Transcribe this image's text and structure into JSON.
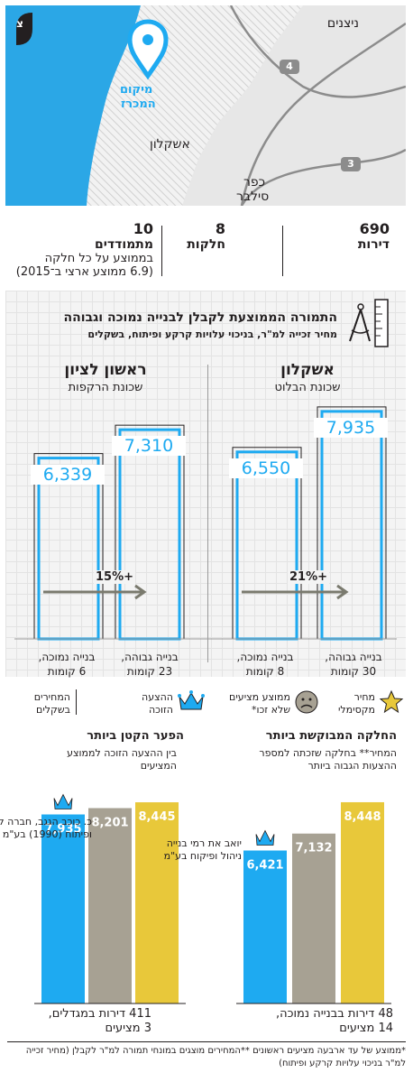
{
  "map": {
    "labels": {
      "nitzanim": "ניצנים",
      "location_line1": "מיקום",
      "location_line2": "המכרז",
      "ashkelon": "אשקלון",
      "kfar_line1": "כפר",
      "kfar_line2": "סילבר"
    },
    "roads": {
      "r4": "4",
      "r3": "3"
    },
    "icons": {
      "pin": "location-pin-icon",
      "north": "north-arrow-icon"
    },
    "north_label": "צ",
    "colors": {
      "sea": "#2ba7e6",
      "land": "#e6e6e6",
      "road": "#8c8c8c",
      "pin": "#1eaaf1"
    }
  },
  "stats": [
    {
      "num": "690",
      "label": "דירות"
    },
    {
      "num": "8",
      "label": "חלקות"
    },
    {
      "num": "10",
      "label": "מתמודדים",
      "sub1": "בממוצע על כל חלקה",
      "sub2": "(6.9 ממוצע ארצי ב־2015)"
    }
  ],
  "panel": {
    "title": "התמורה הממוצעת לקבלן לבנייה נמוכה וגבוהה",
    "subtitle": "מחיר זכייה למ\"ר, בניכוי עלויות קרקע ופיתוח, בשקלים",
    "icon": "compass-ruler-icon",
    "cities": [
      {
        "name": "אשקלון",
        "hood": "שכונת הבלוט",
        "buildings": [
          {
            "value": 7935,
            "label": "7,935",
            "cap1": "בנייה גבוהה,",
            "cap2": "30 קומות"
          },
          {
            "value": 6550,
            "label": "6,550",
            "cap1": "בנייה נמוכה,",
            "cap2": "8 קומות"
          }
        ],
        "diff": "+21%"
      },
      {
        "name": "ראשון לציון",
        "hood": "שכונת הרקפות",
        "buildings": [
          {
            "value": 7310,
            "label": "7,310",
            "cap1": "בנייה גבוהה,",
            "cap2": "23 קומות"
          },
          {
            "value": 6339,
            "label": "6,339",
            "cap1": "בנייה נמוכה,",
            "cap2": "6 קומות"
          }
        ],
        "diff": "+15%"
      }
    ]
  },
  "legend": [
    {
      "icon": "star-icon",
      "line1": "מחיר",
      "line2": "מקסימלי",
      "color": "#e8c83a"
    },
    {
      "icon": "frown-face-icon",
      "line1": "ממוצע מציעים",
      "line2": "שלא זכו*",
      "color": "#a7a193"
    },
    {
      "icon": "crown-icon",
      "line1": "ההצעה",
      "line2": "הזוכה",
      "color": "#1eaaf1"
    },
    {
      "icon": "shekel-divider",
      "line1": "המחירים",
      "line2": "בשקלים"
    }
  ],
  "chart_data": [
    {
      "type": "bar",
      "title": "החלקה המבוקשת ביותר",
      "subtitle_line1": "המחיר** בחלקה שזכתה למספר",
      "subtitle_line2": "ההצעות הגבוה ביותר",
      "categories": [
        "ההצעה הזוכה",
        "ממוצע מציעים שלא זכו*",
        "מחיר מקסימלי"
      ],
      "values": [
        6421,
        7132,
        8448
      ],
      "labels": [
        "6,421",
        "7,132",
        "8,448"
      ],
      "colors": [
        "#1eaaf1",
        "#a7a193",
        "#e8c83a"
      ],
      "winner_line1": "יואב את רמי בנייה",
      "winner_line2": "ניהול ופיקוח בע\"מ",
      "caption_line1": "48 דירות בבנייה נמוכה,",
      "caption_line2": "14 מציעים"
    },
    {
      "type": "bar",
      "title": "הפער הקטן ביותר",
      "subtitle_line1": "בין ההצעה הזוכה לממוצע",
      "subtitle_line2": "המציעים",
      "categories": [
        "ההצעה הזוכה",
        "ממוצע מציעים שלא זכו*",
        "מחיר מקסימלי"
      ],
      "values": [
        7935,
        8201,
        8445
      ],
      "labels": [
        "7,935",
        "8,201",
        "8,445"
      ],
      "colors": [
        "#1eaaf1",
        "#a7a193",
        "#e8c83a"
      ],
      "winner_line1": "כ. כוכב הגגב, חברה לבניין",
      "winner_line2": "ופיתוח (1990) בע\"מ",
      "caption_line1": "411 דירות במגדלים,",
      "caption_line2": "3 מציעים"
    }
  ],
  "footnote": "*ממוצע של עד ארבעה מציעים ראשונים **המחירים מוצגים במונחי תמורה למ\"ר לקבלן (מחיר זכייה למ\"ר בניכוי עלויות קרקע ופיתוח)"
}
